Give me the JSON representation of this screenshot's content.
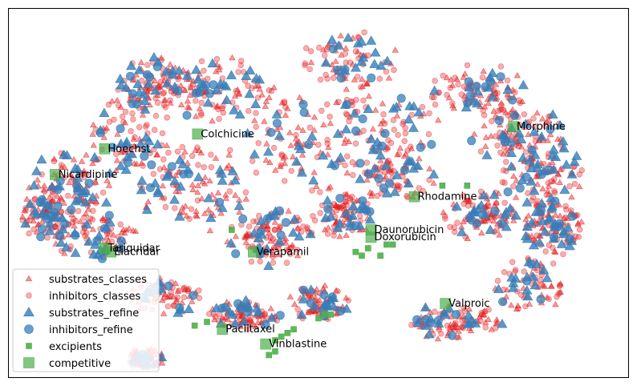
{
  "chart_data": {
    "type": "scatter",
    "title": "",
    "xlabel": "",
    "ylabel": "",
    "axes_visible": false,
    "grid": false,
    "legend_position": "lower-left",
    "colors": {
      "red": "#e41a1c",
      "blue": "#377eb8",
      "green": "#4daf4a"
    },
    "series": [
      {
        "name": "substrates_classes",
        "marker": "triangle",
        "size": "small",
        "color": "#e41a1c",
        "alpha": 0.45
      },
      {
        "name": "inhibitors_classes",
        "marker": "circle",
        "size": "small",
        "color": "#e41a1c",
        "alpha": 0.35
      },
      {
        "name": "substrates_refine",
        "marker": "triangle",
        "size": "large",
        "color": "#377eb8",
        "alpha": 0.8
      },
      {
        "name": "inhibitors_refine",
        "marker": "circle",
        "size": "large",
        "color": "#377eb8",
        "alpha": 0.75
      },
      {
        "name": "excipients",
        "marker": "square",
        "size": "small",
        "color": "#4daf4a",
        "alpha": 0.9
      },
      {
        "name": "competitive",
        "marker": "square",
        "size": "large",
        "color": "#4daf4a",
        "alpha": 0.7
      }
    ],
    "annotations": [
      {
        "label": "Hoechst",
        "x": 0.16,
        "y": 0.62
      },
      {
        "label": "Colchicine",
        "x": 0.31,
        "y": 0.66
      },
      {
        "label": "Morphine",
        "x": 0.82,
        "y": 0.68
      },
      {
        "label": "Nicardipine",
        "x": 0.08,
        "y": 0.55
      },
      {
        "label": "Rhodamine",
        "x": 0.66,
        "y": 0.49
      },
      {
        "label": "Daunorubicin",
        "x": 0.59,
        "y": 0.4
      },
      {
        "label": "Doxorubicin",
        "x": 0.59,
        "y": 0.38
      },
      {
        "label": "Tariquidar",
        "x": 0.16,
        "y": 0.35
      },
      {
        "label": "Elacridar",
        "x": 0.17,
        "y": 0.34
      },
      {
        "label": "Verapamil",
        "x": 0.4,
        "y": 0.34
      },
      {
        "label": "Valproic",
        "x": 0.71,
        "y": 0.2
      },
      {
        "label": "Paclitaxel",
        "x": 0.35,
        "y": 0.13
      },
      {
        "label": "Vinblastine",
        "x": 0.42,
        "y": 0.09
      }
    ],
    "excipient_points": [
      [
        0.44,
        0.11
      ],
      [
        0.43,
        0.1
      ],
      [
        0.45,
        0.12
      ],
      [
        0.46,
        0.13
      ],
      [
        0.5,
        0.16
      ],
      [
        0.51,
        0.17
      ],
      [
        0.52,
        0.17
      ],
      [
        0.42,
        0.06
      ],
      [
        0.43,
        0.07
      ],
      [
        0.36,
        0.4
      ],
      [
        0.58,
        0.35
      ],
      [
        0.57,
        0.33
      ],
      [
        0.6,
        0.33
      ],
      [
        0.61,
        0.36
      ],
      [
        0.62,
        0.36
      ],
      [
        0.56,
        0.34
      ],
      [
        0.7,
        0.52
      ],
      [
        0.74,
        0.52
      ],
      [
        0.32,
        0.15
      ],
      [
        0.3,
        0.14
      ]
    ]
  }
}
